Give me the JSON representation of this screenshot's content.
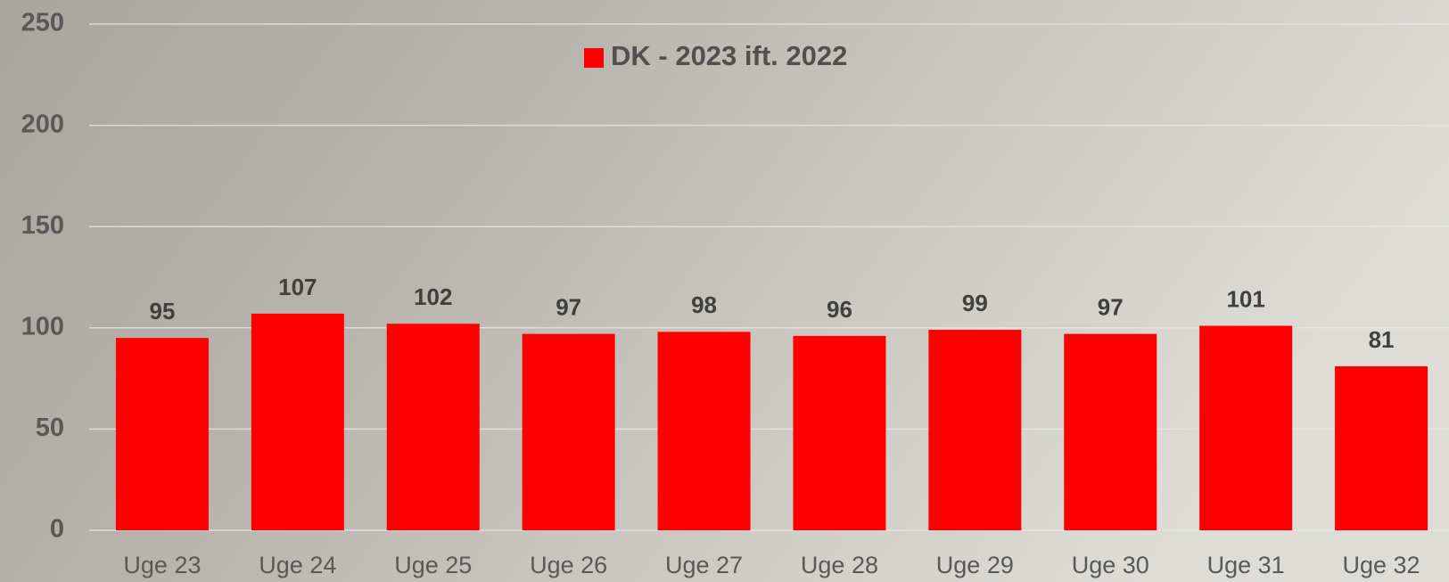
{
  "chart_data": {
    "type": "bar",
    "categories": [
      "Uge 23",
      "Uge 24",
      "Uge 25",
      "Uge 26",
      "Uge 27",
      "Uge 28",
      "Uge 29",
      "Uge 30",
      "Uge 31",
      "Uge 32"
    ],
    "series": [
      {
        "name": "DK - 2023 ift. 2022",
        "color": "#ff0000",
        "values": [
          95,
          107,
          102,
          97,
          98,
          96,
          99,
          97,
          101,
          81
        ]
      }
    ],
    "ylim": [
      0,
      250
    ],
    "yticks": [
      0,
      50,
      100,
      150,
      200,
      250
    ],
    "grid": true,
    "legend": "top"
  }
}
